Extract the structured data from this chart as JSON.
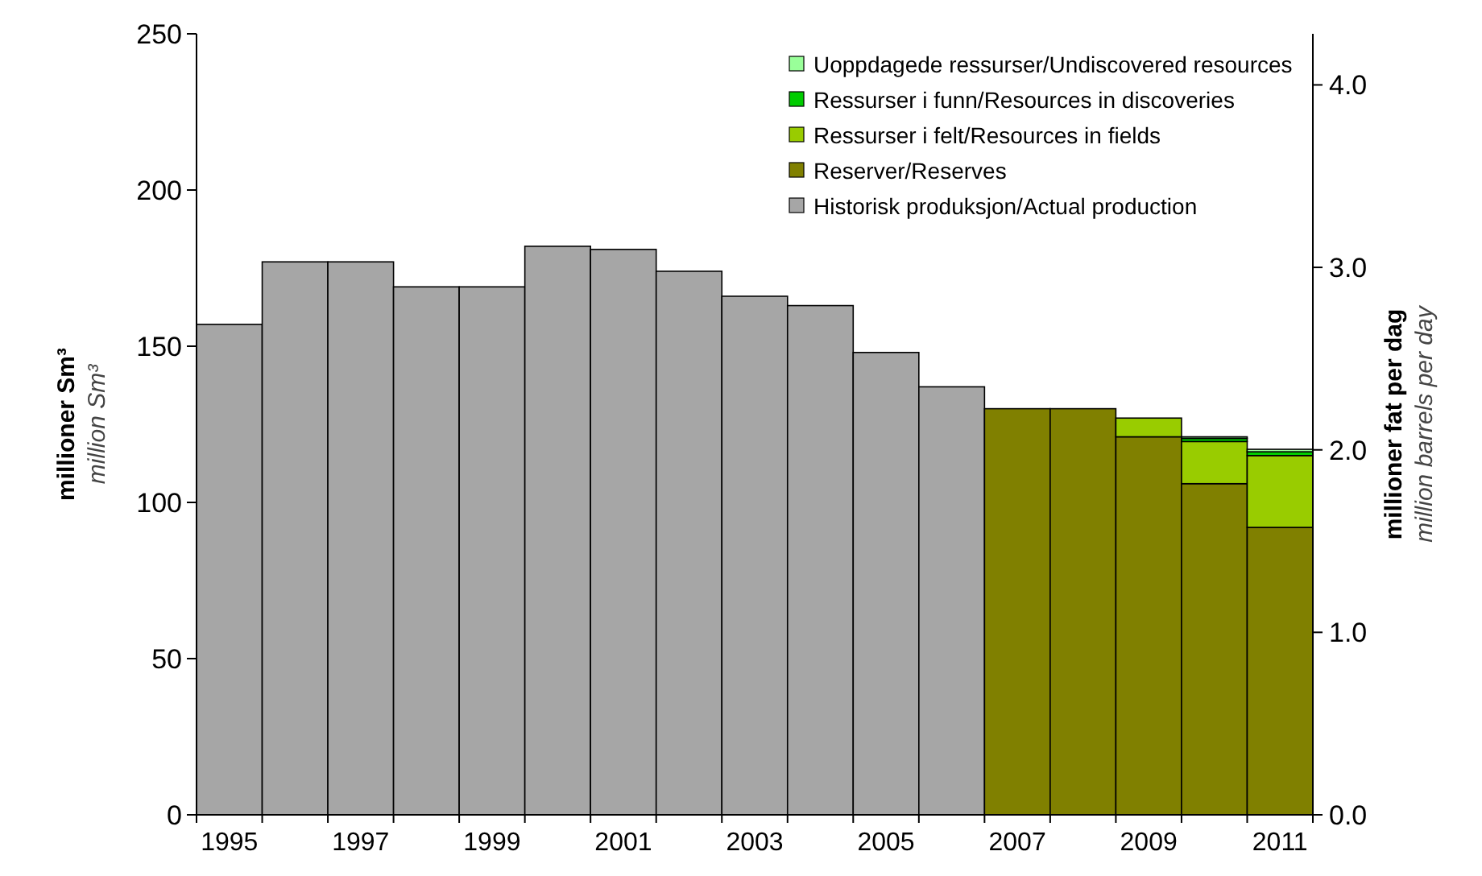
{
  "chart_data": {
    "type": "bar",
    "stacked": true,
    "categories": [
      "1995",
      null,
      "1997",
      null,
      "1999",
      null,
      "2001",
      null,
      "2003",
      null,
      "2005",
      null,
      "2007",
      null,
      "2009",
      null,
      "2011"
    ],
    "series": [
      {
        "name": "Historisk produksjon/Actual production",
        "color": "#a6a6a6",
        "values": [
          157,
          177,
          177,
          169,
          169,
          182,
          181,
          174,
          166,
          163,
          148,
          137,
          null,
          null,
          null,
          null,
          null
        ]
      },
      {
        "name": "Reserver/Reserves",
        "color": "#808000",
        "values": [
          null,
          null,
          null,
          null,
          null,
          null,
          null,
          null,
          null,
          null,
          null,
          null,
          130,
          130,
          121,
          106,
          92
        ]
      },
      {
        "name": "Ressurser i felt/Resources in fields",
        "color": "#99cc00",
        "values": [
          null,
          null,
          null,
          null,
          null,
          null,
          null,
          null,
          null,
          null,
          null,
          null,
          null,
          null,
          6,
          13.5,
          23
        ]
      },
      {
        "name": "Ressurser i funn/Resources in discoveries",
        "color": "#00cc00",
        "values": [
          null,
          null,
          null,
          null,
          null,
          null,
          null,
          null,
          null,
          null,
          null,
          null,
          null,
          null,
          null,
          1,
          1.2
        ]
      },
      {
        "name": "Uoppdagede ressurser/Undiscovered resources",
        "color": "#99ff99",
        "values": [
          null,
          null,
          null,
          null,
          null,
          null,
          null,
          null,
          null,
          null,
          null,
          null,
          null,
          null,
          null,
          0.5,
          0.8
        ]
      }
    ],
    "ylim": [
      0,
      250
    ],
    "yticks": [
      0,
      50,
      100,
      150,
      200,
      250
    ],
    "y2lim": [
      0,
      4.28
    ],
    "y2ticks": [
      {
        "value": 0,
        "label": "0.0"
      },
      {
        "value": 1,
        "label": "1.0"
      },
      {
        "value": 2,
        "label": "2.0"
      },
      {
        "value": 3,
        "label": "3.0"
      },
      {
        "value": 4,
        "label": "4.0"
      }
    ],
    "ylabel": "millioner Sm³\nmillion Sm³",
    "y2label": "millioner fat per dag\nmillion barrels per day",
    "legend": "top right",
    "grid": false
  }
}
